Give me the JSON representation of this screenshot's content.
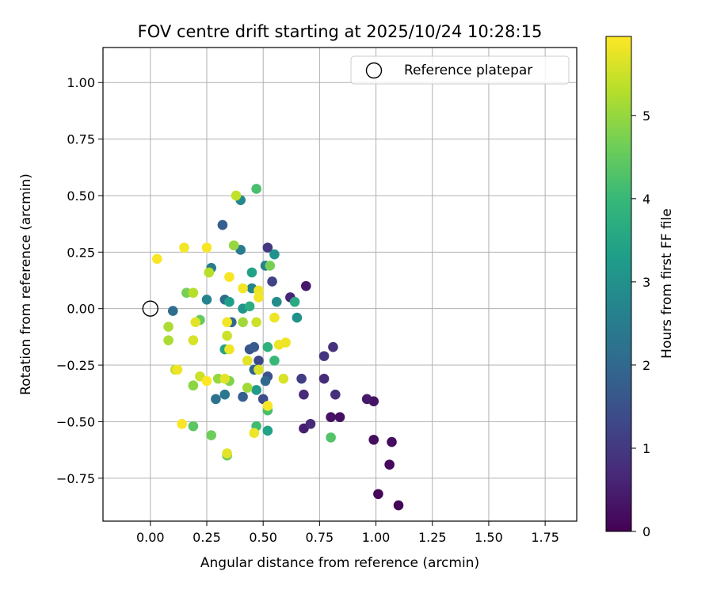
{
  "chart_data": {
    "type": "scatter",
    "title": "FOV centre drift starting at 2025/10/24 10:28:15",
    "xlabel": "Angular distance from reference (arcmin)",
    "ylabel": "Rotation from reference (arcmin)",
    "xlim": [
      -0.21,
      1.89
    ],
    "ylim": [
      -0.94,
      1.155
    ],
    "xticks": [
      0.0,
      0.25,
      0.5,
      0.75,
      1.0,
      1.25,
      1.5,
      1.75
    ],
    "xtick_labels": [
      "0.00",
      "0.25",
      "0.50",
      "0.75",
      "1.00",
      "1.25",
      "1.50",
      "1.75"
    ],
    "yticks": [
      -0.75,
      -0.5,
      -0.25,
      0.0,
      0.25,
      0.5,
      0.75,
      1.0
    ],
    "ytick_labels": [
      "−0.75",
      "−0.50",
      "−0.25",
      "0.00",
      "0.25",
      "0.50",
      "0.75",
      "1.00"
    ],
    "grid": true,
    "legend": {
      "position": "top-right",
      "label": "Reference platepar",
      "marker": "open-circle"
    },
    "reference_point": {
      "x": 0.0,
      "y": 0.0,
      "label": "Reference platepar"
    },
    "colorbar": {
      "label": "Hours from first FF file",
      "range": [
        0,
        5.95
      ],
      "ticks": [
        0,
        1,
        2,
        3,
        4,
        5
      ],
      "tick_labels": [
        "0",
        "1",
        "2",
        "3",
        "4",
        "5"
      ],
      "colormap": [
        "#440154",
        "#482878",
        "#3e4989",
        "#31688e",
        "#26828e",
        "#1f9e89",
        "#35b779",
        "#6ece58",
        "#b5de2b",
        "#fde725"
      ]
    },
    "series": [
      {
        "name": "FOV centre drift",
        "points": [
          {
            "x": 1.1,
            "y": -0.87,
            "h": 0.05
          },
          {
            "x": 1.01,
            "y": -0.82,
            "h": 0.1
          },
          {
            "x": 1.06,
            "y": -0.69,
            "h": 0.15
          },
          {
            "x": 1.07,
            "y": -0.59,
            "h": 0.2
          },
          {
            "x": 0.99,
            "y": -0.58,
            "h": 0.2
          },
          {
            "x": 0.84,
            "y": -0.48,
            "h": 0.25
          },
          {
            "x": 0.8,
            "y": -0.48,
            "h": 0.3
          },
          {
            "x": 0.99,
            "y": -0.41,
            "h": 0.3
          },
          {
            "x": 0.96,
            "y": -0.4,
            "h": 0.4
          },
          {
            "x": 0.69,
            "y": 0.1,
            "h": 0.4
          },
          {
            "x": 0.68,
            "y": -0.53,
            "h": 0.5
          },
          {
            "x": 0.62,
            "y": 0.05,
            "h": 0.6
          },
          {
            "x": 0.71,
            "y": -0.51,
            "h": 0.7
          },
          {
            "x": 0.68,
            "y": -0.38,
            "h": 0.7
          },
          {
            "x": 0.77,
            "y": -0.31,
            "h": 0.75
          },
          {
            "x": 0.82,
            "y": -0.38,
            "h": 0.8
          },
          {
            "x": 0.81,
            "y": -0.17,
            "h": 0.85
          },
          {
            "x": 0.77,
            "y": -0.21,
            "h": 0.9
          },
          {
            "x": 0.52,
            "y": 0.27,
            "h": 1.0
          },
          {
            "x": 0.67,
            "y": -0.31,
            "h": 1.1
          },
          {
            "x": 0.54,
            "y": 0.12,
            "h": 1.2
          },
          {
            "x": 0.48,
            "y": -0.23,
            "h": 1.3
          },
          {
            "x": 0.5,
            "y": -0.4,
            "h": 1.4
          },
          {
            "x": 0.52,
            "y": -0.3,
            "h": 1.5
          },
          {
            "x": 0.44,
            "y": -0.18,
            "h": 1.6
          },
          {
            "x": 0.46,
            "y": -0.17,
            "h": 1.7
          },
          {
            "x": 0.41,
            "y": -0.39,
            "h": 1.8
          },
          {
            "x": 0.32,
            "y": 0.37,
            "h": 1.8
          },
          {
            "x": 0.46,
            "y": -0.27,
            "h": 1.9
          },
          {
            "x": 0.51,
            "y": -0.32,
            "h": 2.0
          },
          {
            "x": 0.36,
            "y": -0.06,
            "h": 2.0
          },
          {
            "x": 0.33,
            "y": 0.04,
            "h": 2.1
          },
          {
            "x": 0.1,
            "y": -0.01,
            "h": 2.1
          },
          {
            "x": 0.29,
            "y": -0.4,
            "h": 2.2
          },
          {
            "x": 0.33,
            "y": -0.38,
            "h": 2.4
          },
          {
            "x": 0.4,
            "y": 0.26,
            "h": 2.5
          },
          {
            "x": 0.27,
            "y": 0.18,
            "h": 2.5
          },
          {
            "x": 0.51,
            "y": 0.19,
            "h": 2.6
          },
          {
            "x": 0.25,
            "y": 0.04,
            "h": 2.7
          },
          {
            "x": 0.45,
            "y": 0.09,
            "h": 2.7
          },
          {
            "x": 0.4,
            "y": 0.48,
            "h": 2.8
          },
          {
            "x": 0.56,
            "y": 0.03,
            "h": 2.9
          },
          {
            "x": 0.65,
            "y": -0.04,
            "h": 3.0
          },
          {
            "x": 0.55,
            "y": 0.24,
            "h": 3.0
          },
          {
            "x": 0.41,
            "y": 0.0,
            "h": 3.1
          },
          {
            "x": 0.47,
            "y": -0.36,
            "h": 3.2
          },
          {
            "x": 0.35,
            "y": 0.03,
            "h": 3.3
          },
          {
            "x": 0.45,
            "y": 0.16,
            "h": 3.4
          },
          {
            "x": 0.52,
            "y": -0.54,
            "h": 3.4
          },
          {
            "x": 0.33,
            "y": -0.18,
            "h": 3.5
          },
          {
            "x": 0.64,
            "y": 0.03,
            "h": 3.6
          },
          {
            "x": 0.44,
            "y": 0.01,
            "h": 3.7
          },
          {
            "x": 0.52,
            "y": -0.17,
            "h": 3.8
          },
          {
            "x": 0.55,
            "y": -0.23,
            "h": 4.0
          },
          {
            "x": 0.47,
            "y": -0.52,
            "h": 4.1
          },
          {
            "x": 0.47,
            "y": 0.53,
            "h": 4.2
          },
          {
            "x": 0.52,
            "y": -0.45,
            "h": 4.2
          },
          {
            "x": 0.8,
            "y": -0.57,
            "h": 4.3
          },
          {
            "x": 0.19,
            "y": -0.52,
            "h": 4.4
          },
          {
            "x": 0.22,
            "y": -0.05,
            "h": 4.5
          },
          {
            "x": 0.34,
            "y": -0.65,
            "h": 4.6
          },
          {
            "x": 0.27,
            "y": -0.56,
            "h": 4.6
          },
          {
            "x": 0.16,
            "y": 0.07,
            "h": 4.7
          },
          {
            "x": 0.53,
            "y": 0.19,
            "h": 4.7
          },
          {
            "x": 0.35,
            "y": -0.32,
            "h": 4.8
          },
          {
            "x": 0.19,
            "y": -0.34,
            "h": 4.9
          },
          {
            "x": 0.37,
            "y": 0.28,
            "h": 5.0
          },
          {
            "x": 0.3,
            "y": -0.31,
            "h": 5.0
          },
          {
            "x": 0.43,
            "y": -0.35,
            "h": 5.1
          },
          {
            "x": 0.41,
            "y": -0.06,
            "h": 5.1
          },
          {
            "x": 0.08,
            "y": -0.08,
            "h": 5.2
          },
          {
            "x": 0.08,
            "y": -0.14,
            "h": 5.2
          },
          {
            "x": 0.19,
            "y": 0.07,
            "h": 5.3
          },
          {
            "x": 0.26,
            "y": 0.16,
            "h": 5.3
          },
          {
            "x": 0.38,
            "y": 0.5,
            "h": 5.4
          },
          {
            "x": 0.11,
            "y": -0.27,
            "h": 5.4
          },
          {
            "x": 0.22,
            "y": -0.3,
            "h": 5.5
          },
          {
            "x": 0.34,
            "y": -0.12,
            "h": 5.5
          },
          {
            "x": 0.47,
            "y": -0.06,
            "h": 5.5
          },
          {
            "x": 0.59,
            "y": -0.31,
            "h": 5.6
          },
          {
            "x": 0.48,
            "y": -0.27,
            "h": 5.6
          },
          {
            "x": 0.19,
            "y": -0.14,
            "h": 5.6
          },
          {
            "x": 0.34,
            "y": -0.64,
            "h": 5.7
          },
          {
            "x": 0.43,
            "y": -0.23,
            "h": 5.7
          },
          {
            "x": 0.33,
            "y": -0.31,
            "h": 5.7
          },
          {
            "x": 0.2,
            "y": -0.06,
            "h": 5.7
          },
          {
            "x": 0.46,
            "y": -0.55,
            "h": 5.8
          },
          {
            "x": 0.57,
            "y": -0.16,
            "h": 5.8
          },
          {
            "x": 0.6,
            "y": -0.15,
            "h": 5.8
          },
          {
            "x": 0.55,
            "y": -0.04,
            "h": 5.8
          },
          {
            "x": 0.12,
            "y": -0.27,
            "h": 5.8
          },
          {
            "x": 0.35,
            "y": -0.18,
            "h": 5.8
          },
          {
            "x": 0.48,
            "y": 0.08,
            "h": 5.8
          },
          {
            "x": 0.15,
            "y": 0.27,
            "h": 5.85
          },
          {
            "x": 0.41,
            "y": 0.09,
            "h": 5.85
          },
          {
            "x": 0.48,
            "y": 0.05,
            "h": 5.85
          },
          {
            "x": 0.34,
            "y": -0.06,
            "h": 5.85
          },
          {
            "x": 0.25,
            "y": 0.27,
            "h": 5.9
          },
          {
            "x": 0.35,
            "y": 0.14,
            "h": 5.9
          },
          {
            "x": 0.14,
            "y": -0.51,
            "h": 5.9
          },
          {
            "x": 0.03,
            "y": 0.22,
            "h": 5.9
          },
          {
            "x": 0.52,
            "y": -0.43,
            "h": 5.9
          },
          {
            "x": 0.25,
            "y": -0.32,
            "h": 5.95
          }
        ]
      }
    ]
  }
}
